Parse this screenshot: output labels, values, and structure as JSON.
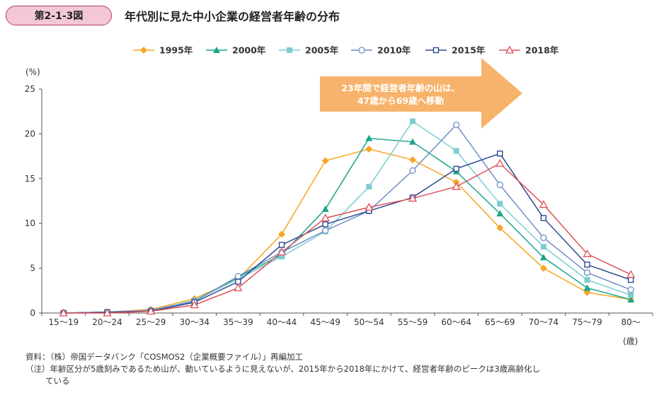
{
  "header": {
    "figure_number": "第2-1-3図",
    "title": "年代別に見た中小企業の経営者年齢の分布"
  },
  "callout": {
    "line1": "23年間で経営者年齢の山は、",
    "line2": "47歳から69歳へ移動",
    "color": "#f7b36b"
  },
  "notes": {
    "source": "資料：（株）帝国データバンク「COSMOS2（企業概要ファイル）」再編加工",
    "note_line1": "（注）年齢区分が5歳刻みであるため山が、動いているように見えないが、2015年から2018年にかけて、経営者年齢のピークは3歳高齢化し",
    "note_line2": "ている"
  },
  "chart_data": {
    "type": "line",
    "y_unit_label": "(%)",
    "x_unit_label": "(歳)",
    "ylim": [
      0,
      25
    ],
    "y_ticks": [
      0,
      5,
      10,
      15,
      20,
      25
    ],
    "grid": false,
    "legend_position": "top",
    "categories": [
      "15〜19",
      "20〜24",
      "25〜29",
      "30〜34",
      "35〜39",
      "40〜44",
      "45〜49",
      "50〜54",
      "55〜59",
      "60〜64",
      "65〜69",
      "70〜74",
      "75〜79",
      "80〜"
    ],
    "series": [
      {
        "name": "1995年",
        "color": "#f5a623",
        "marker": "diamond",
        "values": [
          0.0,
          0.1,
          0.4,
          1.6,
          3.8,
          8.8,
          17.0,
          18.3,
          17.1,
          14.6,
          9.5,
          5.0,
          2.3,
          1.5
        ]
      },
      {
        "name": "2000年",
        "color": "#1aa58b",
        "marker": "triangle",
        "values": [
          0.0,
          0.1,
          0.3,
          1.4,
          4.0,
          6.5,
          11.6,
          19.5,
          19.1,
          15.8,
          11.1,
          6.2,
          2.8,
          1.5
        ]
      },
      {
        "name": "2005年",
        "color": "#7dcdd0",
        "marker": "square-filled",
        "values": [
          0.0,
          0.1,
          0.3,
          1.4,
          3.8,
          6.3,
          9.1,
          14.1,
          21.4,
          18.1,
          12.2,
          7.4,
          3.7,
          2.0
        ]
      },
      {
        "name": "2010年",
        "color": "#6f8fc6",
        "marker": "circle",
        "values": [
          0.0,
          0.1,
          0.3,
          1.3,
          4.1,
          6.8,
          9.2,
          11.4,
          15.9,
          21.0,
          14.3,
          8.4,
          4.5,
          2.6
        ]
      },
      {
        "name": "2015年",
        "color": "#2b4a8f",
        "marker": "square-open",
        "values": [
          0.0,
          0.1,
          0.2,
          1.2,
          3.5,
          7.6,
          9.9,
          11.4,
          12.9,
          16.1,
          17.8,
          10.6,
          5.4,
          3.7
        ]
      },
      {
        "name": "2018年",
        "color": "#e0505a",
        "marker": "triangle-open",
        "values": [
          0.0,
          0.0,
          0.2,
          0.9,
          2.8,
          6.8,
          10.6,
          11.8,
          12.8,
          14.1,
          16.7,
          12.1,
          6.6,
          4.3
        ]
      }
    ]
  }
}
